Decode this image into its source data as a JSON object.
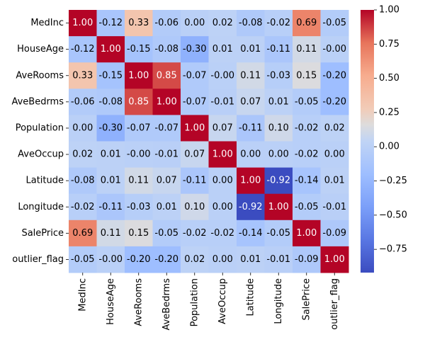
{
  "chart_data": {
    "type": "heatmap",
    "title": "",
    "xlabel": "",
    "ylabel": "",
    "rows": [
      "MedInc",
      "HouseAge",
      "AveRooms",
      "AveBedrms",
      "Population",
      "AveOccup",
      "Latitude",
      "Longitude",
      "SalePrice",
      "outlier_flag"
    ],
    "columns": [
      "MedInc",
      "HouseAge",
      "AveRooms",
      "AveBedrms",
      "Population",
      "AveOccup",
      "Latitude",
      "Longitude",
      "SalePrice",
      "outlier_flag"
    ],
    "values": [
      [
        1.0,
        -0.12,
        0.33,
        -0.06,
        0.0,
        0.02,
        -0.08,
        -0.02,
        0.69,
        -0.05
      ],
      [
        -0.12,
        1.0,
        -0.15,
        -0.08,
        -0.3,
        0.01,
        0.01,
        -0.11,
        0.11,
        -0.0
      ],
      [
        0.33,
        -0.15,
        1.0,
        0.85,
        -0.07,
        -0.0,
        0.11,
        -0.03,
        0.15,
        -0.2
      ],
      [
        -0.06,
        -0.08,
        0.85,
        1.0,
        -0.07,
        -0.01,
        0.07,
        0.01,
        -0.05,
        -0.2
      ],
      [
        0.0,
        -0.3,
        -0.07,
        -0.07,
        1.0,
        0.07,
        -0.11,
        0.1,
        -0.02,
        0.02
      ],
      [
        0.02,
        0.01,
        -0.0,
        -0.01,
        0.07,
        1.0,
        0.0,
        0.0,
        -0.02,
        0.0
      ],
      [
        -0.08,
        0.01,
        0.11,
        0.07,
        -0.11,
        0.0,
        1.0,
        -0.92,
        -0.14,
        0.01
      ],
      [
        -0.02,
        -0.11,
        -0.03,
        0.01,
        0.1,
        0.0,
        -0.92,
        1.0,
        -0.05,
        -0.01
      ],
      [
        0.69,
        0.11,
        0.15,
        -0.05,
        -0.02,
        -0.02,
        -0.14,
        -0.05,
        1.0,
        -0.09
      ],
      [
        -0.05,
        -0.0,
        -0.2,
        -0.2,
        0.02,
        0.0,
        0.01,
        -0.01,
        -0.09,
        1.0
      ]
    ],
    "cell_labels": [
      [
        "1.00",
        "-0.12",
        "0.33",
        "-0.06",
        "0.00",
        "0.02",
        "-0.08",
        "-0.02",
        "0.69",
        "-0.05"
      ],
      [
        "-0.12",
        "1.00",
        "-0.15",
        "-0.08",
        "-0.30",
        "0.01",
        "0.01",
        "-0.11",
        "0.11",
        "-0.00"
      ],
      [
        "0.33",
        "-0.15",
        "1.00",
        "0.85",
        "-0.07",
        "-0.00",
        "0.11",
        "-0.03",
        "0.15",
        "-0.20"
      ],
      [
        "-0.06",
        "-0.08",
        "0.85",
        "1.00",
        "-0.07",
        "-0.01",
        "0.07",
        "0.01",
        "-0.05",
        "-0.20"
      ],
      [
        "0.00",
        "-0.30",
        "-0.07",
        "-0.07",
        "1.00",
        "0.07",
        "-0.11",
        "0.10",
        "-0.02",
        "0.02"
      ],
      [
        "0.02",
        "0.01",
        "-0.00",
        "-0.01",
        "0.07",
        "1.00",
        "0.00",
        "0.00",
        "-0.02",
        "0.00"
      ],
      [
        "-0.08",
        "0.01",
        "0.11",
        "0.07",
        "-0.11",
        "0.00",
        "1.00",
        "-0.92",
        "-0.14",
        "0.01"
      ],
      [
        "-0.02",
        "-0.11",
        "-0.03",
        "0.01",
        "0.10",
        "0.00",
        "-0.92",
        "1.00",
        "-0.05",
        "-0.01"
      ],
      [
        "0.69",
        "0.11",
        "0.15",
        "-0.05",
        "-0.02",
        "-0.02",
        "-0.14",
        "-0.05",
        "1.00",
        "-0.09"
      ],
      [
        "-0.05",
        "-0.00",
        "-0.20",
        "-0.20",
        "0.02",
        "0.00",
        "0.01",
        "-0.01",
        "-0.09",
        "1.00"
      ]
    ],
    "colormap": "coolwarm",
    "color_range": [
      -0.92,
      1.0
    ],
    "colorbar_ticks": [
      1.0,
      0.75,
      0.5,
      0.25,
      0.0,
      -0.25,
      -0.5,
      -0.75
    ],
    "colorbar_tick_labels": [
      "1.00",
      "0.75",
      "0.50",
      "0.25",
      "0.00",
      "−0.25",
      "−0.50",
      "−0.75"
    ],
    "grid": false,
    "legend": "colorbar-right"
  }
}
